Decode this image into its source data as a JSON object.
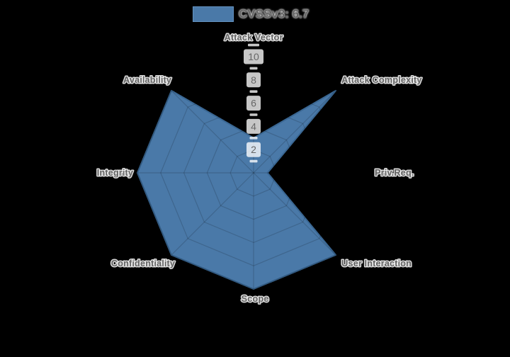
{
  "legend": {
    "label": "CVSSv3: 6.7"
  },
  "colors": {
    "background": "#000000",
    "series_fill": "#4a79a8",
    "series_stroke": "#3a6793",
    "legend_swatch_border": "#6493c1",
    "grid_line": "rgba(0,0,0,0.16)",
    "tick_backdrop": "rgba(255,255,255,0.78)",
    "tick_text": "#666666",
    "label_text": "#666666",
    "label_halo": "rgba(255,255,255,0.85)"
  },
  "chart_data": {
    "type": "radar",
    "title": "",
    "legend_position": "top",
    "grid": "polygon",
    "categories": [
      "Attack Vector",
      "Attack Complexity",
      "Priv.Req.",
      "User Interaction",
      "Scope",
      "Confidentiality",
      "Integrity",
      "Availability"
    ],
    "series": [
      {
        "name": "CVSSv3: 6.7",
        "values": [
          3.0,
          10,
          1.2,
          10,
          10,
          10,
          10,
          10
        ]
      }
    ],
    "r_axis": {
      "min": 0,
      "max": 11,
      "labeled_ticks": [
        2,
        4,
        6,
        8,
        10
      ],
      "minor_ticks": [
        1,
        3,
        5,
        7,
        9,
        11
      ]
    }
  }
}
